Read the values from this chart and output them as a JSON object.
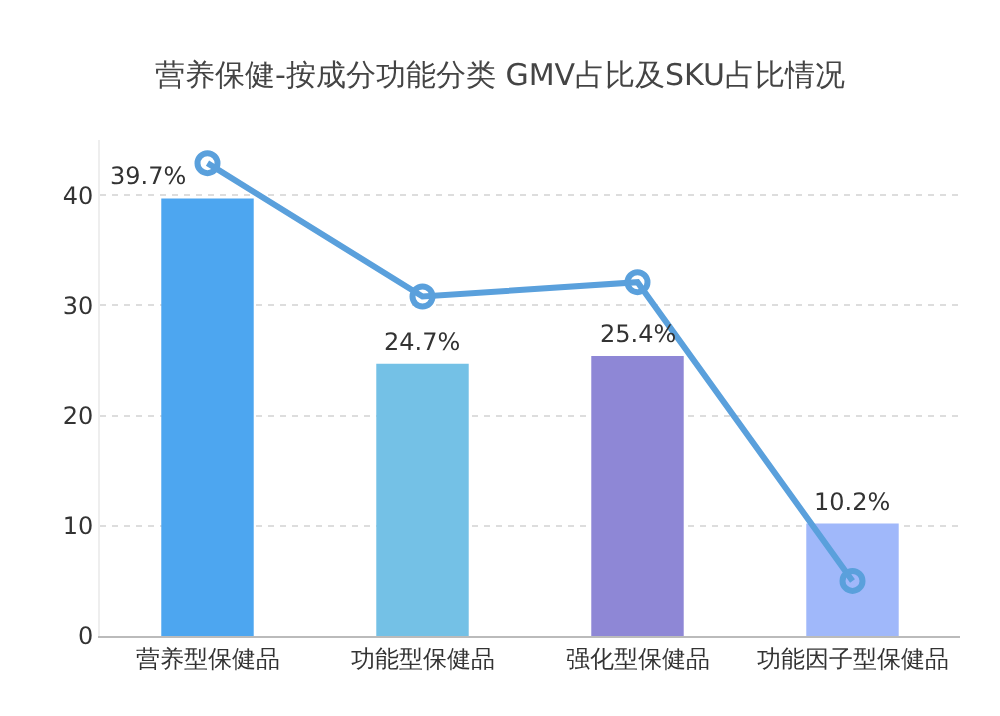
{
  "chart_data": {
    "type": "bar",
    "title": "营养保健-按成分功能分类 GMV占比及SKU占比情况",
    "categories": [
      "营养型保健品",
      "功能型保健品",
      "强化型保健品",
      "功能因子型保健品"
    ],
    "series": [
      {
        "colors": [
          "#4da6f0",
          "#74c1e6",
          "#8e87d6",
          "#a0b8fa"
        ],
        "values": [
          39.7,
          24.7,
          25.4,
          10.2
        ],
        "value_labels": [
          "39.7%",
          "24.7%",
          "25.4%",
          "10.2%"
        ]
      },
      {
        "type": "line",
        "color": "#5aa0dc",
        "values": [
          42.9,
          30.8,
          32.1,
          5.0
        ],
        "marker": "circle"
      }
    ],
    "ylim": [
      0,
      45
    ],
    "yticks": [
      0,
      10,
      20,
      30,
      40
    ],
    "grid": "y"
  }
}
